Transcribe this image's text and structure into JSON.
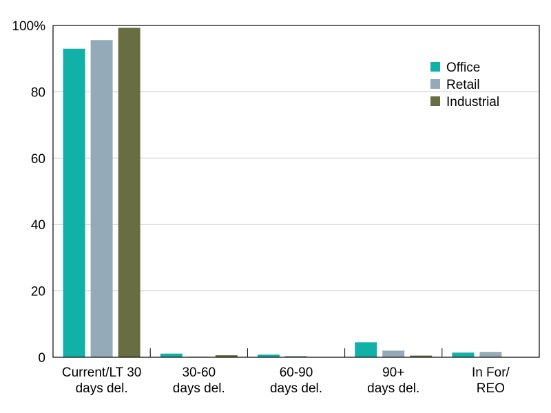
{
  "chart_data": {
    "type": "bar",
    "categories": [
      [
        "Current/LT 30",
        "days del."
      ],
      [
        "30-60",
        "days del."
      ],
      [
        "60-90",
        "days del."
      ],
      [
        "90+",
        "days del."
      ],
      [
        "In For/",
        "REO"
      ]
    ],
    "series": [
      {
        "name": "Office",
        "color": "#12b1a8",
        "values": [
          93,
          1.1,
          0.8,
          4.5,
          1.4
        ]
      },
      {
        "name": "Retail",
        "color": "#95aab9",
        "values": [
          95.6,
          0.2,
          0.4,
          2.0,
          1.6
        ]
      },
      {
        "name": "Industrial",
        "color": "#686e42",
        "values": [
          99.3,
          0.6,
          0.1,
          0.5,
          0.1
        ]
      }
    ],
    "ylim": [
      0,
      100
    ],
    "yticks": [
      "0",
      "20",
      "40",
      "60",
      "80",
      "100%"
    ],
    "grid": true,
    "legend_position": "top-right",
    "gridline_color": "#c8c8c8"
  }
}
